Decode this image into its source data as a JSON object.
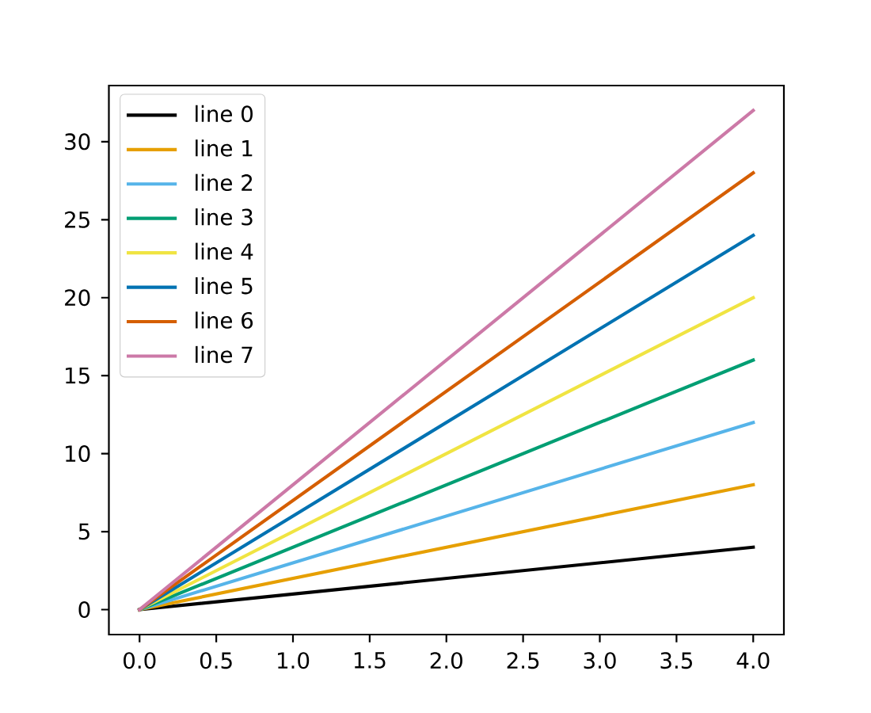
{
  "chart_data": {
    "type": "line",
    "x": [
      0,
      4
    ],
    "series": [
      {
        "name": "line 0",
        "color": "#000000",
        "values": [
          0,
          4
        ]
      },
      {
        "name": "line 1",
        "color": "#e69f00",
        "values": [
          0,
          8
        ]
      },
      {
        "name": "line 2",
        "color": "#56b4e9",
        "values": [
          0,
          12
        ]
      },
      {
        "name": "line 3",
        "color": "#009e73",
        "values": [
          0,
          16
        ]
      },
      {
        "name": "line 4",
        "color": "#f0e442",
        "values": [
          0,
          20
        ]
      },
      {
        "name": "line 5",
        "color": "#0072b2",
        "values": [
          0,
          24
        ]
      },
      {
        "name": "line 6",
        "color": "#d55e00",
        "values": [
          0,
          28
        ]
      },
      {
        "name": "line 7",
        "color": "#cc79a7",
        "values": [
          0,
          32
        ]
      }
    ],
    "xlim": [
      -0.2,
      4.2
    ],
    "ylim": [
      -1.6,
      33.6
    ],
    "xticks": [
      {
        "value": 0,
        "label": "0.0"
      },
      0.5,
      {
        "value": 1,
        "label": "1.0"
      },
      1.5,
      {
        "value": 2,
        "label": "2.0"
      },
      2.5,
      {
        "value": 3,
        "label": "3.0"
      },
      3.5,
      {
        "value": 4,
        "label": "4.0"
      }
    ],
    "yticks": [
      0,
      5,
      10,
      15,
      20,
      25,
      30
    ],
    "legend": "top left",
    "line_style": "solid",
    "marker": "none"
  }
}
